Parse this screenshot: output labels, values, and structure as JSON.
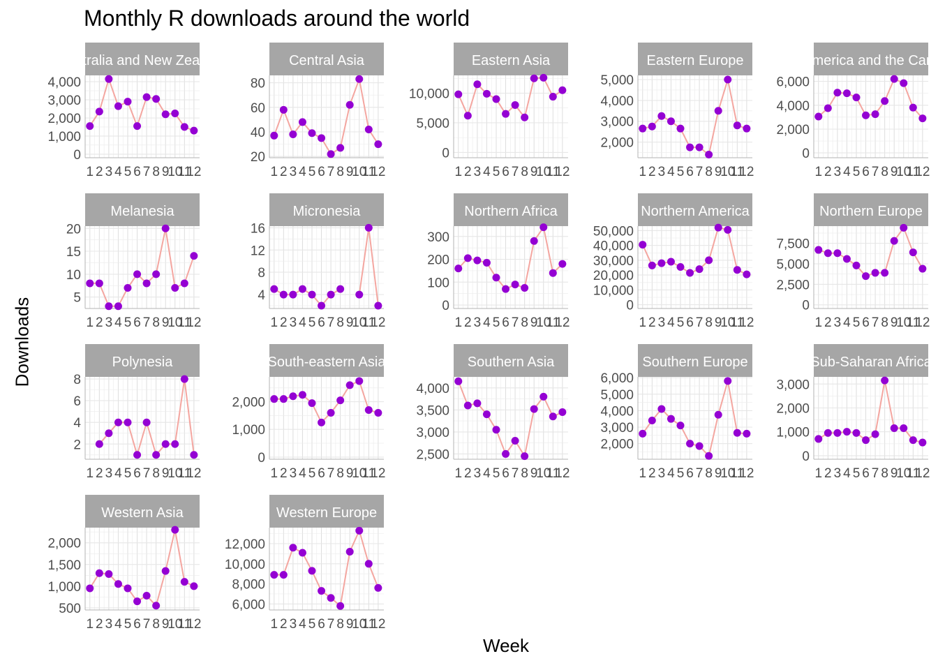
{
  "title": "Monthly R downloads around the world",
  "xlabel": "Week",
  "ylabel": "Downloads",
  "colors": {
    "point": "#9400D3",
    "line": "#F4A6A0",
    "strip": "#A6A6A6",
    "strip_text": "#FFFFFF",
    "grid": "#DDDDDD",
    "axis_text": "#4D4D4D"
  },
  "chart_data": {
    "type": "line",
    "x": [
      1,
      2,
      3,
      4,
      5,
      6,
      7,
      8,
      9,
      10,
      11,
      12
    ],
    "facets": [
      {
        "name": "Australia and New Zealand",
        "values": [
          1550,
          2350,
          4150,
          2650,
          2900,
          1550,
          3150,
          3050,
          2200,
          2250,
          1500,
          1300
        ],
        "yticks": [
          0,
          1000,
          2000,
          3000,
          4000
        ],
        "ytick_labels": [
          "0",
          "1,000",
          "2,000",
          "3,000",
          "4,000"
        ],
        "ylim": [
          -200,
          4350
        ]
      },
      {
        "name": "Central Asia",
        "values": [
          37,
          58,
          38,
          48,
          39,
          35,
          22,
          27,
          62,
          83,
          42,
          30
        ],
        "yticks": [
          20,
          40,
          60,
          80
        ],
        "ytick_labels": [
          "20",
          "40",
          "60",
          "80"
        ],
        "ylim": [
          19,
          86
        ]
      },
      {
        "name": "Eastern Asia",
        "values": [
          9800,
          6200,
          11500,
          9900,
          9000,
          6500,
          8000,
          5900,
          12500,
          12600,
          9400,
          10500
        ],
        "yticks": [
          0,
          5000,
          10000
        ],
        "ytick_labels": [
          "0",
          "5,000",
          "10,000"
        ],
        "ylim": [
          -900,
          13000
        ]
      },
      {
        "name": "Eastern Europe",
        "values": [
          2650,
          2750,
          3250,
          3000,
          2650,
          1750,
          1750,
          1400,
          3500,
          5000,
          2800,
          2650
        ],
        "yticks": [
          2000,
          3000,
          4000,
          5000
        ],
        "ytick_labels": [
          "2,000",
          "3,000",
          "4,000",
          "5,000"
        ],
        "ylim": [
          1250,
          5200
        ]
      },
      {
        "name": "Latin America and the Caribbean",
        "values": [
          3050,
          3750,
          5050,
          5000,
          4650,
          3150,
          3250,
          4350,
          6200,
          5850,
          3800,
          2900
        ],
        "yticks": [
          0,
          2000,
          4000,
          6000
        ],
        "ytick_labels": [
          "0",
          "2,000",
          "4,000",
          "6,000"
        ],
        "ylim": [
          -400,
          6500
        ]
      },
      {
        "name": "Melanesia",
        "values": [
          8,
          8,
          3,
          3,
          7,
          10,
          8,
          10,
          20,
          7,
          8,
          14
        ],
        "yticks": [
          5,
          10,
          15,
          20
        ],
        "ytick_labels": [
          "5",
          "10",
          "15",
          "20"
        ],
        "ylim": [
          2.5,
          20.5
        ]
      },
      {
        "name": "Micronesia",
        "values": [
          5,
          4,
          4,
          5,
          4,
          2,
          4,
          5,
          null,
          4,
          16,
          2
        ],
        "yticks": [
          4,
          8,
          12,
          16
        ],
        "ytick_labels": [
          "4",
          "8",
          "12",
          "16"
        ],
        "ylim": [
          1.5,
          16.3
        ]
      },
      {
        "name": "Northern Africa",
        "values": [
          160,
          205,
          195,
          185,
          120,
          70,
          90,
          75,
          280,
          340,
          140,
          180
        ],
        "yticks": [
          0,
          100,
          200,
          300
        ],
        "ytick_labels": [
          "0",
          "100",
          "200",
          "300"
        ],
        "ylim": [
          -15,
          345
        ]
      },
      {
        "name": "Northern America",
        "values": [
          40500,
          26500,
          28000,
          29000,
          25500,
          21500,
          24000,
          30000,
          52000,
          50500,
          23500,
          20500
        ],
        "yticks": [
          0,
          10000,
          20000,
          30000,
          40000,
          50000
        ],
        "ytick_labels": [
          "0",
          "10,000",
          "20,000",
          "30,000",
          "40,000",
          "50,000"
        ],
        "ylim": [
          -2500,
          53000
        ]
      },
      {
        "name": "Northern Europe",
        "values": [
          6700,
          6300,
          6300,
          5600,
          4800,
          3500,
          3900,
          3900,
          7800,
          9400,
          6400,
          4400
        ],
        "yticks": [
          0,
          2500,
          5000,
          7500
        ],
        "ytick_labels": [
          "0",
          "2,500",
          "5,000",
          "7,500"
        ],
        "ylim": [
          -450,
          9600
        ]
      },
      {
        "name": "Polynesia",
        "values": [
          null,
          2,
          3,
          4,
          4,
          1,
          4,
          1,
          2,
          2,
          8,
          1
        ],
        "yticks": [
          2,
          4,
          6,
          8
        ],
        "ytick_labels": [
          "2",
          "4",
          "6",
          "8"
        ],
        "ylim": [
          0.6,
          8.2
        ]
      },
      {
        "name": "South-eastern Asia",
        "values": [
          2100,
          2100,
          2200,
          2250,
          1950,
          1250,
          1600,
          2050,
          2600,
          2750,
          1700,
          1600
        ],
        "yticks": [
          0,
          1000,
          2000
        ],
        "ytick_labels": [
          "0",
          "1,000",
          "2,000"
        ],
        "ylim": [
          -80,
          2900
        ]
      },
      {
        "name": "Southern Asia",
        "values": [
          4150,
          3600,
          3650,
          3400,
          3050,
          2500,
          2800,
          2450,
          3520,
          3800,
          3350,
          3450
        ],
        "yticks": [
          2500,
          3000,
          3500,
          4000
        ],
        "ytick_labels": [
          "2,500",
          "3,000",
          "3,500",
          "4,000"
        ],
        "ylim": [
          2380,
          4250
        ]
      },
      {
        "name": "Southern Europe",
        "values": [
          2600,
          3400,
          4100,
          3500,
          3100,
          2000,
          1850,
          1250,
          3750,
          5800,
          2650,
          2600
        ],
        "yticks": [
          2000,
          3000,
          4000,
          5000,
          6000
        ],
        "ytick_labels": [
          "2,000",
          "3,000",
          "4,000",
          "5,000",
          "6,000"
        ],
        "ylim": [
          1050,
          6050
        ]
      },
      {
        "name": "Sub-Saharan Africa",
        "values": [
          700,
          950,
          950,
          1000,
          950,
          650,
          900,
          3150,
          1150,
          1150,
          650,
          550
        ],
        "yticks": [
          0,
          1000,
          2000,
          3000
        ],
        "ytick_labels": [
          "0",
          "1,000",
          "2,000",
          "3,000"
        ],
        "ylim": [
          -150,
          3300
        ]
      },
      {
        "name": "Western Asia",
        "values": [
          950,
          1300,
          1280,
          1050,
          950,
          650,
          780,
          550,
          1350,
          2300,
          1100,
          1000
        ],
        "yticks": [
          500,
          1000,
          1500,
          2000
        ],
        "ytick_labels": [
          "500",
          "1,000",
          "1,500",
          "2,000"
        ],
        "ylim": [
          450,
          2350
        ]
      },
      {
        "name": "Western Europe",
        "values": [
          8900,
          8900,
          11600,
          11100,
          9300,
          7300,
          6600,
          5800,
          11200,
          13300,
          10000,
          7600
        ],
        "yticks": [
          6000,
          8000,
          10000,
          12000
        ],
        "ytick_labels": [
          "6,000",
          "8,000",
          "10,000",
          "12,000"
        ],
        "ylim": [
          5400,
          13600
        ]
      }
    ]
  }
}
